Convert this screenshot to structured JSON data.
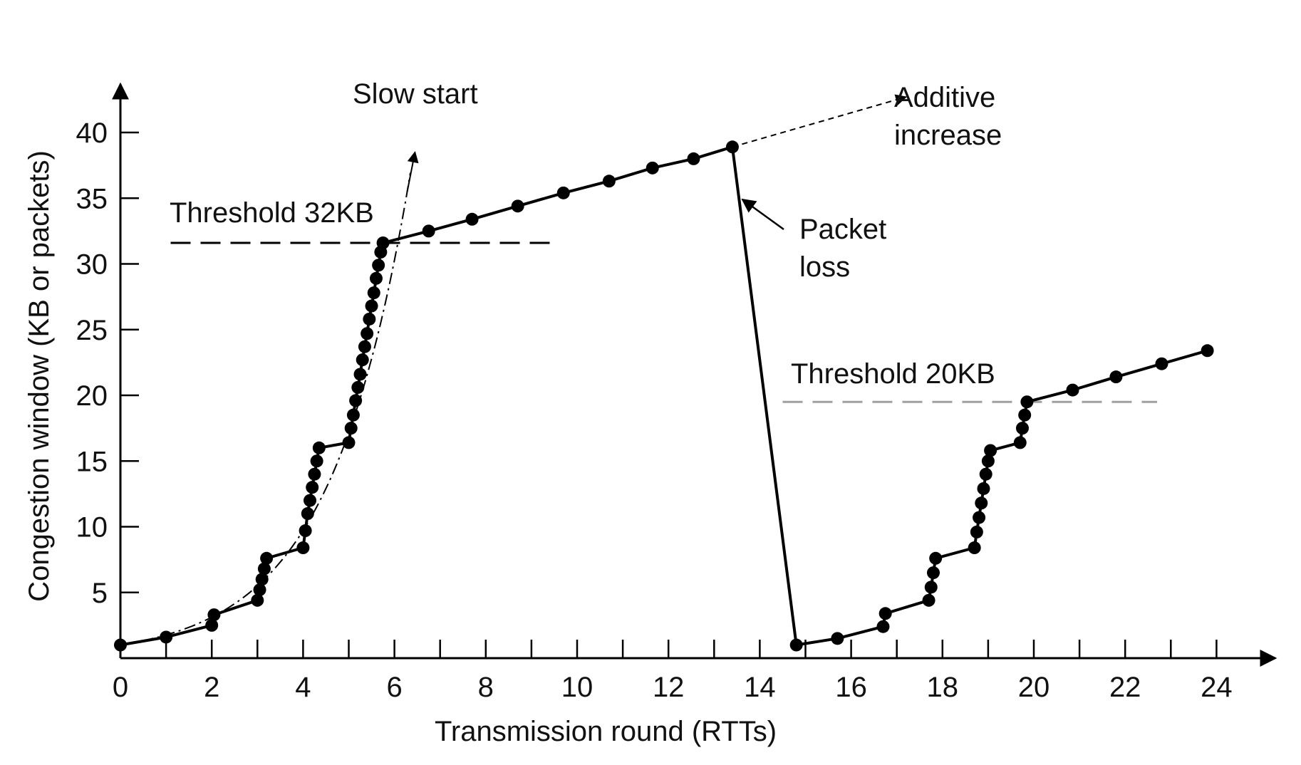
{
  "chart_data": {
    "type": "line",
    "title": "",
    "xlabel": "Transmission round (RTTs)",
    "ylabel": "Congestion window (KB or packets)",
    "xlim": [
      0,
      25
    ],
    "ylim": [
      0,
      42
    ],
    "x_ticks": [
      0,
      2,
      4,
      6,
      8,
      10,
      12,
      14,
      16,
      18,
      20,
      22,
      24
    ],
    "y_ticks": [
      5,
      10,
      15,
      20,
      25,
      30,
      35,
      40
    ],
    "grid": false,
    "colors": {
      "line": "#000000",
      "threshold_2": "#a0a0a0"
    },
    "series": [
      {
        "values_xy": [
          [
            0,
            1
          ],
          [
            1,
            1.6
          ],
          [
            2,
            2.5
          ],
          [
            2.05,
            3.3
          ],
          [
            3,
            4.4
          ],
          [
            3.05,
            5.2
          ],
          [
            3.1,
            6
          ],
          [
            3.15,
            6.8
          ],
          [
            3.2,
            7.6
          ],
          [
            4,
            8.4
          ],
          [
            4.05,
            9.7
          ],
          [
            4.1,
            11
          ],
          [
            4.15,
            12
          ],
          [
            4.2,
            13
          ],
          [
            4.25,
            14
          ],
          [
            4.3,
            15
          ],
          [
            4.35,
            16
          ],
          [
            5,
            16.4
          ],
          [
            5.05,
            17.5
          ],
          [
            5.1,
            18.5
          ],
          [
            5.15,
            19.6
          ],
          [
            5.2,
            20.6
          ],
          [
            5.25,
            21.6
          ],
          [
            5.3,
            22.7
          ],
          [
            5.35,
            23.7
          ],
          [
            5.4,
            24.7
          ],
          [
            5.45,
            25.8
          ],
          [
            5.5,
            26.8
          ],
          [
            5.55,
            27.8
          ],
          [
            5.6,
            28.9
          ],
          [
            5.65,
            29.9
          ],
          [
            5.7,
            30.9
          ],
          [
            5.75,
            31.6
          ],
          [
            6.75,
            32.5
          ],
          [
            7.7,
            33.4
          ],
          [
            8.7,
            34.4
          ],
          [
            9.7,
            35.4
          ],
          [
            10.7,
            36.3
          ],
          [
            11.65,
            37.3
          ],
          [
            12.55,
            38
          ],
          [
            13.4,
            38.9
          ],
          [
            14.8,
            1
          ],
          [
            15.7,
            1.5
          ],
          [
            16.7,
            2.4
          ],
          [
            16.75,
            3.4
          ],
          [
            17.7,
            4.4
          ],
          [
            17.75,
            5.4
          ],
          [
            17.8,
            6.5
          ],
          [
            17.85,
            7.6
          ],
          [
            18.7,
            8.4
          ],
          [
            18.75,
            9.6
          ],
          [
            18.8,
            10.7
          ],
          [
            18.85,
            11.8
          ],
          [
            18.9,
            12.9
          ],
          [
            18.95,
            14
          ],
          [
            19,
            15
          ],
          [
            19.05,
            15.8
          ],
          [
            19.7,
            16.4
          ],
          [
            19.75,
            17.5
          ],
          [
            19.8,
            18.5
          ],
          [
            19.85,
            19.5
          ],
          [
            20.85,
            20.4
          ],
          [
            21.8,
            21.4
          ],
          [
            22.8,
            22.4
          ],
          [
            23.8,
            23.4
          ]
        ]
      }
    ],
    "thresholds": [
      {
        "label": "Threshold 32KB",
        "y": 31.6,
        "x_range": [
          1.1,
          9.4
        ]
      },
      {
        "label": "Threshold 20KB",
        "y": 19.5,
        "x_range": [
          14.5,
          22.7
        ]
      }
    ],
    "annotations": {
      "slow_start": "Slow start",
      "additive_line1": "Additive",
      "additive_line2": "increase",
      "packet_loss_line1": "Packet",
      "packet_loss_line2": "loss"
    }
  }
}
